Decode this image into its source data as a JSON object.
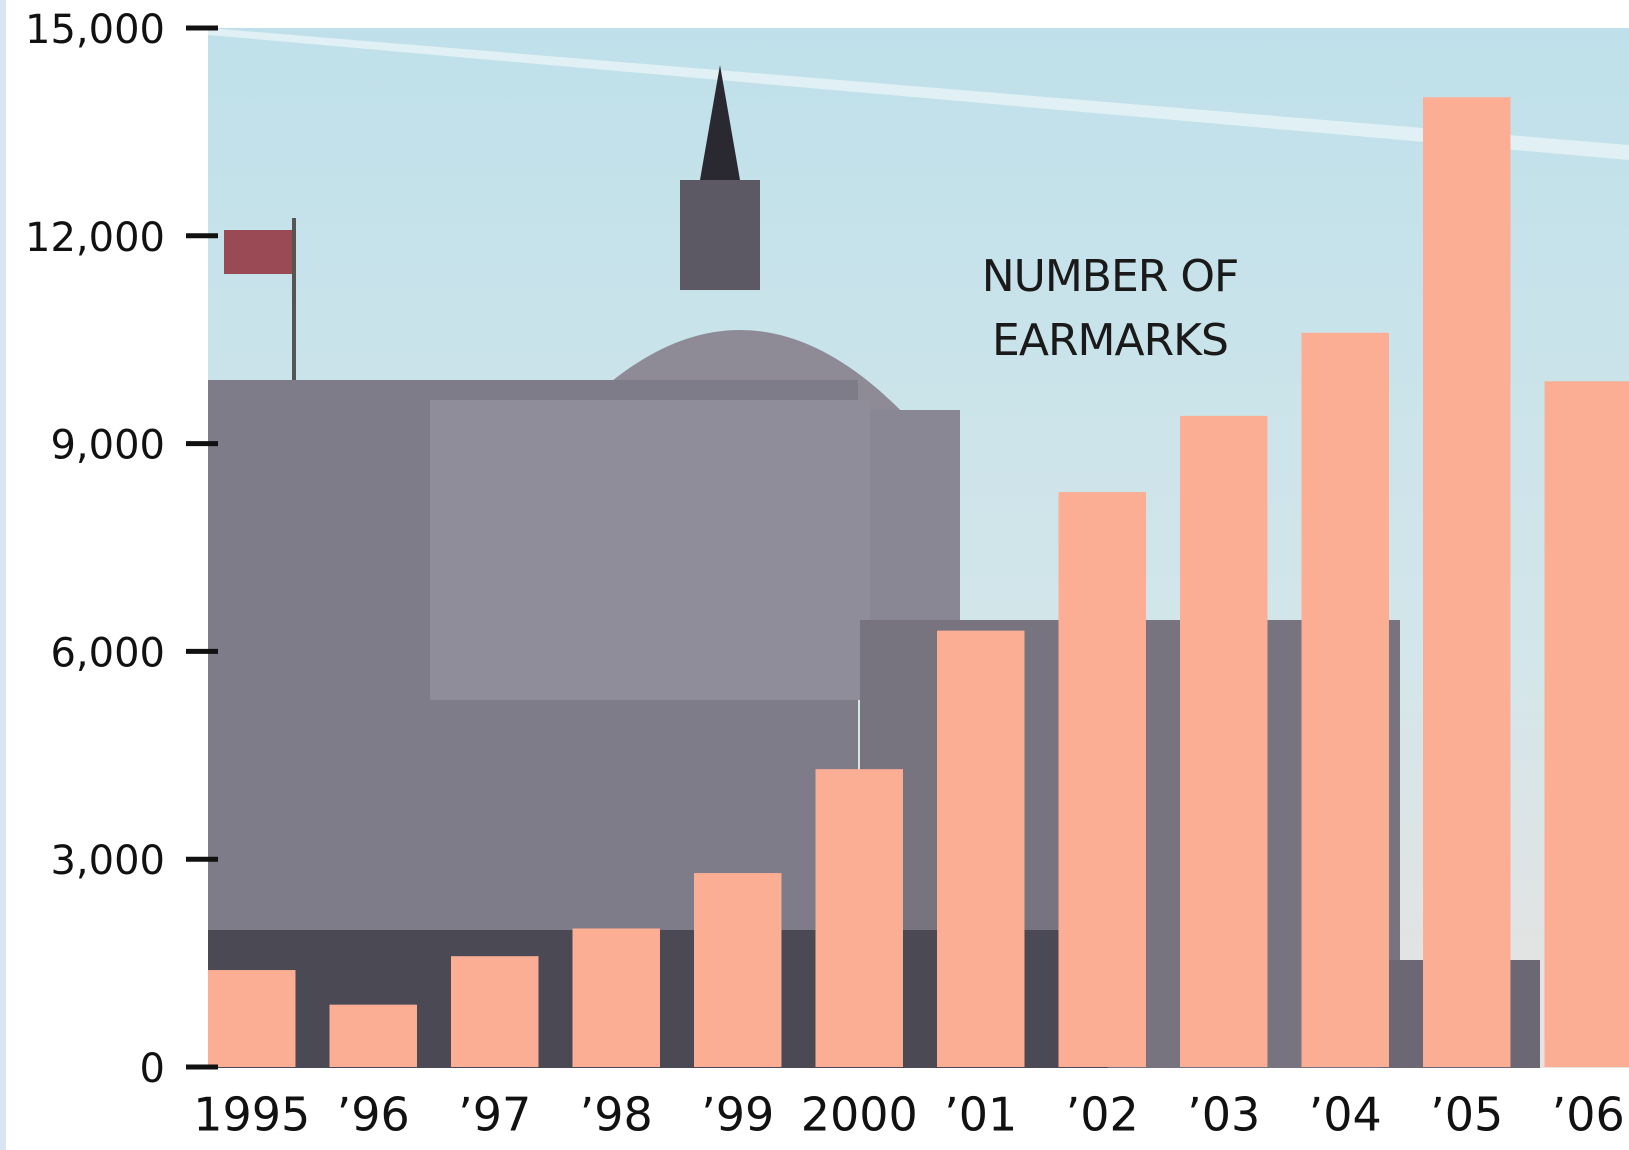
{
  "chart_data": {
    "type": "bar",
    "title": "NUMBER OF EARMARKS",
    "categories": [
      "1995",
      "’96",
      "’97",
      "’98",
      "’99",
      "2000",
      "’01",
      "’02",
      "’03",
      "’04",
      "’05",
      "’06"
    ],
    "values": [
      1400,
      900,
      1600,
      2000,
      2800,
      4300,
      6300,
      8300,
      9400,
      10600,
      14000,
      9900
    ],
    "color": "#fbae93",
    "ylim": [
      0,
      15000
    ],
    "yticks": [
      0,
      {
        "value": 3000,
        "label": "3,000"
      },
      {
        "value": 6000,
        "label": "6,000"
      },
      {
        "value": 9000,
        "label": "9,000"
      },
      {
        "value": 12000,
        "label": "12,000"
      },
      {
        "value": 15000,
        "label": "15,000"
      }
    ]
  }
}
